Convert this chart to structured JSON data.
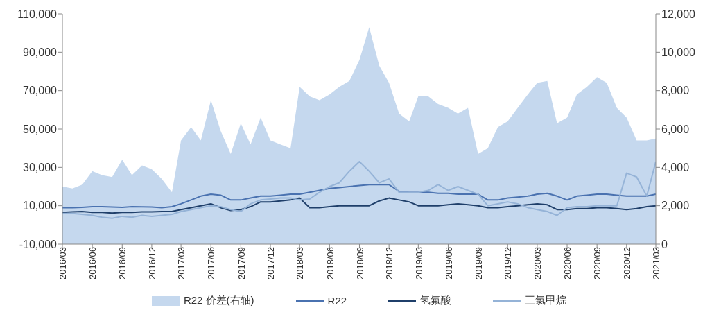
{
  "chart_data": {
    "type": "line",
    "x": [
      "2016-03",
      "2016-04",
      "2016-05",
      "2016-06",
      "2016-07",
      "2016-08",
      "2016-09",
      "2016-10",
      "2016-11",
      "2016-12",
      "2017-01",
      "2017-02",
      "2017-03",
      "2017-04",
      "2017-05",
      "2017-06",
      "2017-07",
      "2017-08",
      "2017-09",
      "2017-10",
      "2017-11",
      "2017-12",
      "2018-01",
      "2018-02",
      "2018-03",
      "2018-04",
      "2018-05",
      "2018-06",
      "2018-07",
      "2018-08",
      "2018-09",
      "2018-10",
      "2018-11",
      "2018-12",
      "2019-01",
      "2019-02",
      "2019-03",
      "2019-04",
      "2019-05",
      "2019-06",
      "2019-07",
      "2019-08",
      "2019-09",
      "2019-10",
      "2019-11",
      "2019-12",
      "2020-01",
      "2020-02",
      "2020-03",
      "2020-04",
      "2020-05",
      "2020-06",
      "2020-07",
      "2020-08",
      "2020-09",
      "2020-10",
      "2020-11",
      "2020-12",
      "2021-01",
      "2021-02",
      "2021-03"
    ],
    "series": [
      {
        "name": "R22 价差(右轴)",
        "type": "area",
        "axis": "y2",
        "color": "#c5d8ee",
        "values": [
          3000,
          2900,
          3100,
          3800,
          3600,
          3500,
          4400,
          3600,
          4100,
          3900,
          3400,
          2700,
          5400,
          6100,
          5400,
          7500,
          5900,
          4700,
          6300,
          5200,
          6600,
          5400,
          5200,
          5000,
          8200,
          7700,
          7500,
          7800,
          8200,
          8500,
          9600,
          11300,
          9300,
          8400,
          6800,
          6400,
          7700,
          7700,
          7300,
          7100,
          6800,
          7100,
          4700,
          5000,
          6100,
          6400,
          7100,
          7800,
          8400,
          8500,
          6300,
          6600,
          7800,
          8200,
          8700,
          8400,
          7100,
          6600,
          5400,
          5400,
          5500
        ]
      },
      {
        "name": "R22",
        "color": "#4a72b0",
        "values": [
          9000,
          9000,
          9200,
          9500,
          9500,
          9300,
          9200,
          9500,
          9400,
          9300,
          9000,
          9500,
          11000,
          13000,
          15000,
          16000,
          15500,
          13000,
          13000,
          14000,
          15000,
          15000,
          15500,
          16000,
          16000,
          17000,
          18000,
          19000,
          19500,
          20000,
          20500,
          21000,
          21000,
          21000,
          17500,
          17000,
          17000,
          17000,
          16500,
          16500,
          16000,
          16000,
          16000,
          13000,
          13000,
          14000,
          14500,
          15000,
          16000,
          16500,
          15000,
          13000,
          15000,
          15500,
          16000,
          16000,
          15500,
          15000,
          15000,
          15000,
          16000
        ]
      },
      {
        "name": "氢氟酸",
        "color": "#1f3f6a",
        "values": [
          6500,
          6800,
          7000,
          6500,
          6500,
          6200,
          6500,
          6500,
          6800,
          6800,
          7000,
          7000,
          8000,
          9000,
          10000,
          11000,
          9000,
          7500,
          8000,
          9500,
          12000,
          12000,
          12500,
          13000,
          14000,
          9000,
          9000,
          9500,
          10000,
          10000,
          10000,
          10000,
          12500,
          14000,
          13000,
          12000,
          10000,
          10000,
          10000,
          10500,
          11000,
          10500,
          10000,
          9000,
          9000,
          9500,
          10000,
          10500,
          11000,
          10500,
          8000,
          8000,
          8500,
          8500,
          9000,
          9000,
          8500,
          8000,
          8500,
          9500,
          10000
        ]
      },
      {
        "name": "三氯甲烷",
        "color": "#95b3d7",
        "values": [
          6000,
          6000,
          5500,
          5000,
          4000,
          3500,
          4500,
          4000,
          5000,
          4500,
          5000,
          5500,
          7000,
          8000,
          9000,
          10000,
          9500,
          8000,
          7000,
          11000,
          13000,
          13500,
          14000,
          14000,
          13000,
          13500,
          17000,
          20000,
          22000,
          28000,
          33000,
          28000,
          22000,
          24000,
          17000,
          17000,
          17000,
          18000,
          21000,
          18000,
          20000,
          18000,
          16000,
          10000,
          11000,
          12000,
          11000,
          9000,
          8000,
          7000,
          5000,
          9000,
          9500,
          9500,
          10000,
          10000,
          10000,
          27000,
          25000,
          15000,
          33000
        ]
      }
    ],
    "xlim": [
      "2016-03",
      "2021-03"
    ],
    "xticks": [
      {
        "value": "2016-03",
        "label": "2016/03"
      },
      {
        "value": "2016-06",
        "label": "2016/06"
      },
      {
        "value": "2016-09",
        "label": "2016/09"
      },
      {
        "value": "2016-12",
        "label": "2016/12"
      },
      {
        "value": "2017-03",
        "label": "2017/03"
      },
      {
        "value": "2017-06",
        "label": "2017/06"
      },
      {
        "value": "2017-09",
        "label": "2017/09"
      },
      {
        "value": "2017-12",
        "label": "2017/12"
      },
      {
        "value": "2018-03",
        "label": "2018/03"
      },
      {
        "value": "2018-06",
        "label": "2018/06"
      },
      {
        "value": "2018-09",
        "label": "2018/09"
      },
      {
        "value": "2018-12",
        "label": "2018/12"
      },
      {
        "value": "2019-03",
        "label": "2019/03"
      },
      {
        "value": "2019-06",
        "label": "2019/06"
      },
      {
        "value": "2019-09",
        "label": "2019/09"
      },
      {
        "value": "2019-12",
        "label": "2019/12"
      },
      {
        "value": "2020-03",
        "label": "2020/03"
      },
      {
        "value": "2020-06",
        "label": "2020/06"
      },
      {
        "value": "2020-09",
        "label": "2020/09"
      },
      {
        "value": "2020-12",
        "label": "2020/12"
      },
      {
        "value": "2021-03",
        "label": "2021/03"
      }
    ],
    "ylim": [
      -10000,
      110000
    ],
    "yticks": [
      {
        "value": -10000,
        "label": "-10,000"
      },
      {
        "value": 10000,
        "label": "10,000"
      },
      {
        "value": 30000,
        "label": "30,000"
      },
      {
        "value": 50000,
        "label": "50,000"
      },
      {
        "value": 70000,
        "label": "70,000"
      },
      {
        "value": 90000,
        "label": "90,000"
      },
      {
        "value": 110000,
        "label": "110,000"
      }
    ],
    "y2lim": [
      0,
      12000
    ],
    "y2ticks": [
      0,
      {
        "value": 2000,
        "label": "2,000"
      },
      {
        "value": 4000,
        "label": "4,000"
      },
      {
        "value": 6000,
        "label": "6,000"
      },
      {
        "value": 8000,
        "label": "8,000"
      },
      {
        "value": 10000,
        "label": "10,000"
      },
      {
        "value": 12000,
        "label": "12,000"
      }
    ],
    "grid": false,
    "legend": "bottom",
    "line_style": "solid",
    "marker": "none"
  }
}
